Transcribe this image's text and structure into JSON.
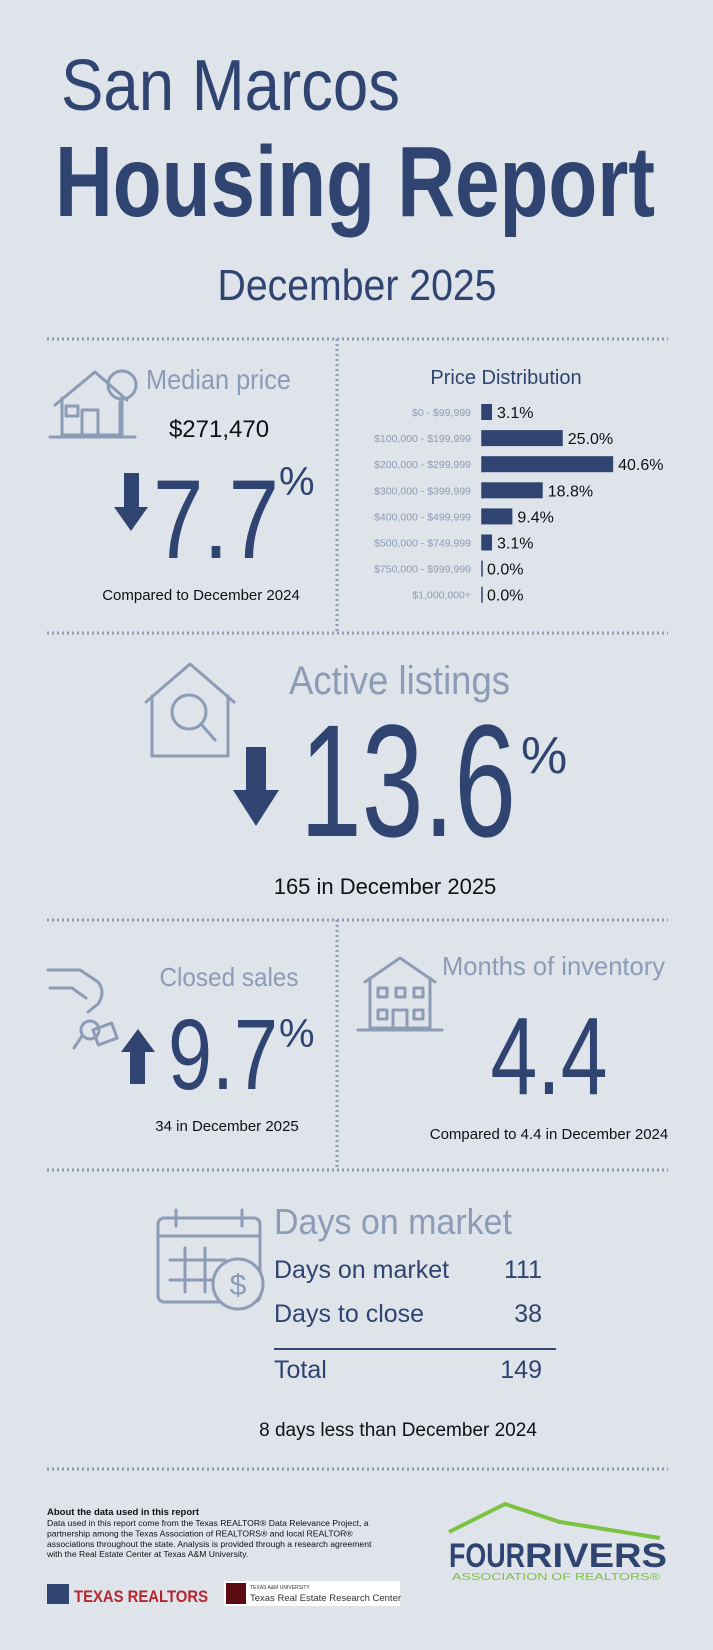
{
  "header": {
    "city": "San Marcos",
    "title": "Housing Report",
    "period": "December 2025"
  },
  "median_price": {
    "label": "Median price",
    "price": "$271,470",
    "change": 7.7,
    "unit": "%",
    "comparison": "Compared to December 2024"
  },
  "price_distribution": {
    "type": "bar",
    "title": "Price Distribution",
    "categories": [
      "$0 - $99,999",
      "$100,000 - $199,999",
      "$200,000 - $299,999",
      "$300,000 - $399,999",
      "$400,000 - $499,999",
      "$500,000 - $749,999",
      "$750,000 - $999,999",
      "$1,000,000+"
    ],
    "values": [
      3.1,
      25.0,
      40.6,
      18.8,
      9.4,
      3.1,
      0.0,
      0.0
    ],
    "value_labels": [
      "3.1%",
      "25.0%",
      "40.6%",
      "18.8%",
      "9.4%",
      "3.1%",
      "0.0%",
      "0.0%"
    ],
    "color": "#2f4470"
  },
  "active_listings": {
    "label": "Active listings",
    "change": 13.6,
    "unit": "%",
    "note": "165 in December 2025"
  },
  "closed_sales": {
    "label": "Closed sales",
    "change": 9.7,
    "unit": "%",
    "note": "34 in December 2025"
  },
  "months_inventory": {
    "label": "Months of inventory",
    "value": 4.4,
    "note": "Compared to 4.4 in December 2024"
  },
  "days_on_market": {
    "label": "Days on market",
    "rows": [
      {
        "label": "Days on market",
        "value": 111
      },
      {
        "label": "Days to close",
        "value": 38
      },
      {
        "label": "Total",
        "value": 149
      }
    ],
    "note": "8 days less than December 2024"
  },
  "footer": {
    "about_title": "About the data used in this report",
    "about_lines": [
      "Data used in this report come from the Texas REALTOR® Data Relevance Project, a",
      "partnership among the Texas Association of REALTORS® and local REALTOR®",
      "associations throughout the state. Analysis is provided through a research agreement",
      "with the Real Estate Center at Texas A&M University."
    ],
    "texas_realtors": "TEXAS REALTORS",
    "tamu_small": "TEXAS A&M UNIVERSITY",
    "tamu": "Texas Real Estate Research Center",
    "four": "FOUR",
    "rivers": "RIVERS",
    "association": "ASSOCIATION OF REALTORS®"
  }
}
